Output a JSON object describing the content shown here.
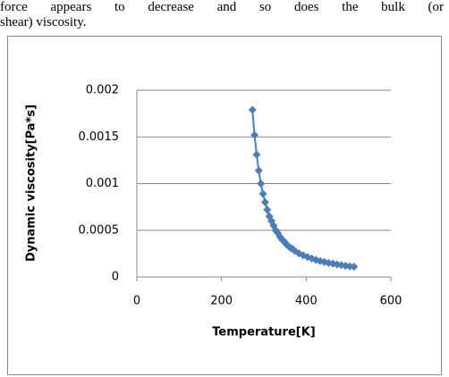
{
  "text": {
    "lines": [
      "force appears to decrease and so does the bulk (or",
      "shear) viscosity."
    ]
  },
  "chart_data": {
    "type": "line",
    "x_label": "Temperature[K]",
    "y_label": "Dynamic viscosity[Pa*s]",
    "x": [
      273,
      278,
      283,
      288,
      293,
      298,
      303,
      308,
      313,
      318,
      323,
      328,
      333,
      338,
      343,
      348,
      353,
      358,
      363,
      368,
      373,
      383,
      393,
      403,
      413,
      423,
      433,
      443,
      453,
      463,
      473,
      483,
      493,
      503,
      513
    ],
    "series": [
      {
        "color": "#4a7ebb",
        "values": [
          0.00179,
          0.00152,
          0.00131,
          0.00114,
          0.001,
          0.00089,
          0.0008,
          0.00072,
          0.00065,
          0.0006,
          0.00055,
          0.0005,
          0.00047,
          0.00043,
          0.0004,
          0.00038,
          0.00035,
          0.00033,
          0.00031,
          0.0003,
          0.00028,
          0.000252,
          0.000232,
          0.000213,
          0.000197,
          0.000183,
          0.00017,
          0.00016,
          0.00015,
          0.000142,
          0.000134,
          0.000127,
          0.00012,
          0.000114,
          0.000109
        ]
      }
    ],
    "xlim": [
      0,
      600
    ],
    "xticks": [
      0,
      200,
      400,
      600
    ],
    "ylim": [
      0,
      0.002
    ],
    "yticks": [
      0,
      0.0005,
      0.001,
      0.0015,
      0.002
    ],
    "grid": true
  }
}
